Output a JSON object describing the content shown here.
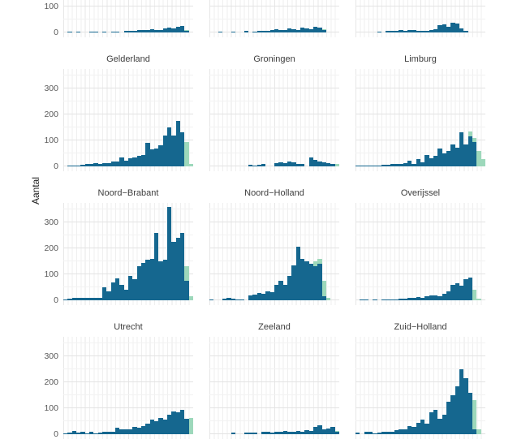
{
  "chart_data": {
    "type": "bar",
    "subtype": "faceted-histograms-small-multiples",
    "ylabel": "Aantal",
    "y_ticks": [
      0,
      100,
      200,
      300
    ],
    "y_axis_range": [
      0,
      375
    ],
    "bins_per_panel": 30,
    "grid": "major-and-minor-both-axes",
    "legend_position": "none",
    "note_visible_content": "top row of three facet panels is cropped at image top (titles not visible); bottom x-axis labels not visible",
    "colors": {
      "primary_series": "#15678f",
      "secondary_series": "#9dd8bb",
      "grid_major": "#e3e3e3",
      "grid_minor": "#f2f2f2",
      "tick_text": "#595959",
      "facet_title_text": "#3d3d3d",
      "axis_title_text": "#1a1a1a",
      "background": "#ffffff"
    },
    "series_names": {
      "primary": "blue-histogram",
      "secondary": "green-histogram"
    },
    "panels": [
      {
        "title": "",
        "blue": [
          0,
          4,
          0,
          4,
          0,
          0,
          4,
          4,
          0,
          4,
          0,
          4,
          4,
          0,
          5,
          5,
          6,
          8,
          10,
          8,
          12,
          10,
          10,
          16,
          20,
          16,
          22,
          26,
          5,
          0
        ],
        "green": [
          0,
          0,
          0,
          0,
          0,
          0,
          0,
          0,
          0,
          0,
          0,
          0,
          0,
          0,
          0,
          0,
          0,
          0,
          0,
          0,
          0,
          0,
          0,
          0,
          0,
          0,
          0,
          0,
          8,
          0
        ]
      },
      {
        "title": "",
        "blue": [
          0,
          0,
          3,
          0,
          0,
          3,
          0,
          0,
          5,
          0,
          4,
          5,
          6,
          5,
          8,
          12,
          10,
          8,
          16,
          12,
          10,
          20,
          16,
          14,
          22,
          20,
          8,
          0,
          0,
          0
        ],
        "green": [
          0,
          0,
          0,
          0,
          0,
          0,
          0,
          0,
          0,
          0,
          0,
          0,
          0,
          0,
          0,
          0,
          0,
          0,
          0,
          0,
          0,
          0,
          0,
          0,
          0,
          0,
          12,
          0,
          0,
          0
        ]
      },
      {
        "title": "",
        "blue": [
          0,
          0,
          0,
          0,
          0,
          4,
          0,
          6,
          5,
          5,
          8,
          6,
          10,
          8,
          6,
          5,
          6,
          8,
          12,
          28,
          32,
          22,
          38,
          34,
          15,
          5,
          0,
          0,
          0,
          0
        ],
        "green": [
          0,
          0,
          0,
          0,
          0,
          0,
          0,
          0,
          0,
          0,
          0,
          0,
          0,
          0,
          0,
          0,
          0,
          0,
          0,
          0,
          0,
          0,
          0,
          0,
          0,
          6,
          0,
          0,
          0,
          0
        ]
      },
      {
        "title": "Gelderland",
        "blue": [
          0,
          2,
          3,
          3,
          5,
          8,
          10,
          12,
          10,
          14,
          12,
          18,
          20,
          35,
          22,
          30,
          35,
          42,
          45,
          90,
          65,
          70,
          80,
          120,
          150,
          120,
          175,
          130,
          0,
          0
        ],
        "green": [
          0,
          0,
          0,
          0,
          0,
          0,
          0,
          0,
          0,
          0,
          0,
          0,
          0,
          0,
          0,
          0,
          0,
          0,
          0,
          0,
          0,
          0,
          0,
          0,
          0,
          0,
          0,
          0,
          95,
          8
        ]
      },
      {
        "title": "Groningen",
        "blue": [
          0,
          0,
          0,
          0,
          0,
          0,
          0,
          0,
          0,
          5,
          3,
          5,
          8,
          0,
          0,
          12,
          15,
          12,
          18,
          15,
          10,
          8,
          0,
          33,
          25,
          20,
          15,
          12,
          10,
          0
        ],
        "green": [
          0,
          0,
          0,
          0,
          0,
          0,
          0,
          0,
          0,
          0,
          0,
          0,
          0,
          0,
          0,
          0,
          0,
          0,
          0,
          0,
          0,
          0,
          0,
          0,
          0,
          0,
          0,
          0,
          0,
          8
        ]
      },
      {
        "title": "Limburg",
        "blue": [
          2,
          2,
          3,
          3,
          3,
          4,
          5,
          6,
          8,
          8,
          10,
          12,
          22,
          10,
          28,
          16,
          45,
          30,
          40,
          68,
          50,
          60,
          85,
          72,
          130,
          85,
          115,
          95,
          0,
          0
        ],
        "green": [
          0,
          0,
          0,
          0,
          0,
          0,
          0,
          0,
          0,
          0,
          0,
          0,
          0,
          0,
          0,
          0,
          0,
          0,
          0,
          0,
          0,
          0,
          0,
          0,
          0,
          0,
          135,
          110,
          60,
          28
        ]
      },
      {
        "title": "Noord−Brabant",
        "blue": [
          3,
          5,
          8,
          8,
          8,
          8,
          8,
          10,
          10,
          50,
          35,
          70,
          85,
          60,
          40,
          95,
          80,
          130,
          145,
          155,
          160,
          260,
          150,
          155,
          360,
          225,
          240,
          260,
          75,
          0
        ],
        "green": [
          0,
          0,
          0,
          0,
          0,
          0,
          0,
          0,
          0,
          0,
          0,
          0,
          0,
          0,
          0,
          0,
          0,
          0,
          0,
          0,
          0,
          0,
          0,
          0,
          0,
          0,
          0,
          0,
          130,
          15
        ]
      },
      {
        "title": "Noord−Holland",
        "blue": [
          3,
          0,
          0,
          5,
          8,
          5,
          3,
          3,
          0,
          18,
          22,
          28,
          25,
          35,
          30,
          60,
          75,
          60,
          95,
          135,
          205,
          160,
          150,
          140,
          130,
          140,
          15,
          0,
          0,
          0
        ],
        "green": [
          0,
          0,
          0,
          0,
          0,
          0,
          0,
          0,
          0,
          0,
          0,
          0,
          0,
          0,
          0,
          0,
          0,
          0,
          0,
          0,
          0,
          0,
          0,
          0,
          150,
          160,
          75,
          10,
          0,
          0
        ]
      },
      {
        "title": "Overijssel",
        "blue": [
          0,
          3,
          3,
          0,
          2,
          0,
          2,
          3,
          3,
          4,
          5,
          6,
          8,
          10,
          12,
          10,
          15,
          20,
          18,
          15,
          25,
          35,
          60,
          65,
          55,
          80,
          88,
          0,
          0,
          0
        ],
        "green": [
          0,
          0,
          0,
          0,
          0,
          0,
          0,
          0,
          0,
          0,
          0,
          0,
          0,
          0,
          0,
          0,
          0,
          0,
          0,
          0,
          0,
          0,
          0,
          0,
          0,
          0,
          0,
          42,
          6,
          0
        ]
      },
      {
        "title": "Utrecht",
        "blue": [
          3,
          5,
          12,
          5,
          8,
          3,
          10,
          3,
          6,
          8,
          10,
          8,
          25,
          20,
          18,
          20,
          28,
          25,
          30,
          40,
          55,
          50,
          62,
          55,
          75,
          88,
          85,
          95,
          60,
          0
        ],
        "green": [
          0,
          0,
          0,
          0,
          0,
          0,
          0,
          0,
          0,
          0,
          0,
          0,
          0,
          0,
          0,
          0,
          0,
          0,
          0,
          0,
          0,
          0,
          0,
          0,
          0,
          0,
          0,
          0,
          0,
          62
        ]
      },
      {
        "title": "Zeeland",
        "blue": [
          0,
          0,
          0,
          0,
          0,
          5,
          0,
          0,
          6,
          5,
          5,
          0,
          9,
          8,
          6,
          9,
          8,
          12,
          9,
          8,
          12,
          9,
          15,
          12,
          27,
          33,
          18,
          22,
          27,
          8
        ],
        "green": [
          0,
          0,
          0,
          0,
          0,
          0,
          0,
          0,
          0,
          0,
          0,
          0,
          0,
          0,
          0,
          0,
          0,
          0,
          0,
          0,
          0,
          0,
          0,
          0,
          0,
          0,
          0,
          0,
          0,
          12
        ]
      },
      {
        "title": "Zuid−Holland",
        "blue": [
          5,
          0,
          10,
          8,
          3,
          5,
          8,
          10,
          8,
          15,
          20,
          18,
          30,
          28,
          45,
          55,
          40,
          85,
          95,
          60,
          75,
          125,
          150,
          185,
          250,
          215,
          160,
          20,
          0,
          0
        ],
        "green": [
          0,
          0,
          0,
          0,
          0,
          0,
          0,
          0,
          0,
          0,
          0,
          0,
          0,
          0,
          0,
          0,
          0,
          0,
          0,
          0,
          0,
          0,
          0,
          0,
          0,
          0,
          0,
          130,
          18,
          0
        ]
      }
    ]
  }
}
